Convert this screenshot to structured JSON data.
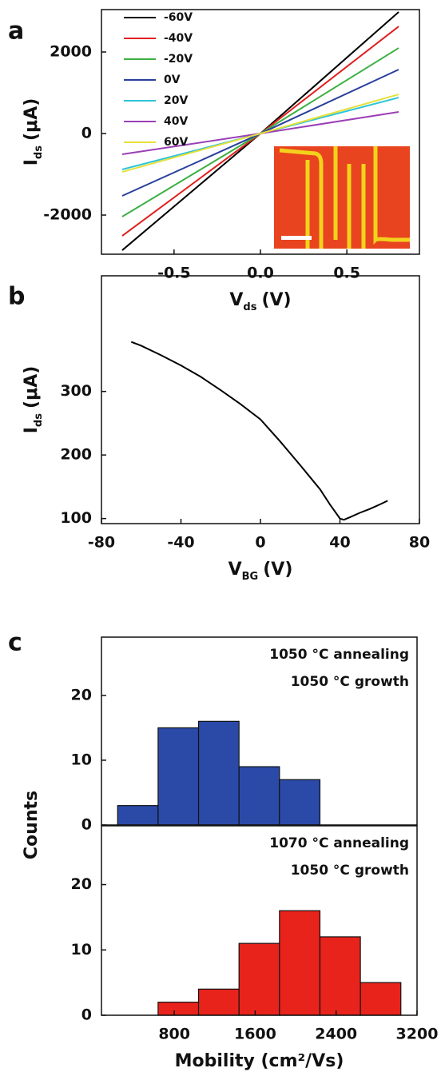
{
  "chart_data": [
    {
      "type": "line",
      "panel": "a",
      "xlabel": {
        "text": "V",
        "sub": "ds",
        "unit": "(V)"
      },
      "ylabel": {
        "text": "I",
        "sub": "ds",
        "unit": "(μA)"
      },
      "x": [
        -0.8,
        0,
        0.8
      ],
      "series": [
        {
          "name": "-60V",
          "color": "#000000",
          "values": [
            -2863,
            0,
            2980
          ]
        },
        {
          "name": "-40V",
          "color": "#e0201e",
          "values": [
            -2510,
            0,
            2627
          ]
        },
        {
          "name": "-20V",
          "color": "#3cb043",
          "values": [
            -2039,
            0,
            2098
          ]
        },
        {
          "name": "0V",
          "color": "#2a3f9d",
          "values": [
            -1529,
            0,
            1569
          ]
        },
        {
          "name": "20V",
          "color": "#2ec4d6",
          "values": [
            -882,
            0,
            882
          ]
        },
        {
          "name": "40V",
          "color": "#9b3fb5",
          "values": [
            -510,
            0,
            530
          ]
        },
        {
          "name": "60V",
          "color": "#e6e03a",
          "values": [
            -941,
            0,
            961
          ]
        }
      ],
      "xlim": [
        -0.92,
        0.92
      ],
      "xticks": [
        -0.5,
        {
          "value": 0,
          "label": "0.0"
        },
        0.5
      ],
      "ylim": [
        -2960,
        3040
      ],
      "yticks": [
        -2000,
        0,
        2000
      ],
      "legend": "upper left"
    },
    {
      "type": "line",
      "panel": "b",
      "xlabel": {
        "text": "V",
        "sub": "BG",
        "unit": "(V)"
      },
      "ylabel": {
        "text": "I",
        "sub": "ds",
        "unit": "(μA)"
      },
      "x": [
        -65,
        -60,
        -50,
        -40,
        -30,
        -20,
        -10,
        0,
        10,
        20,
        30,
        35,
        40,
        42,
        45,
        50,
        55,
        60,
        64
      ],
      "series": [
        {
          "color": "#000000",
          "values": [
            378,
            372,
            357,
            341,
            323,
            302,
            280,
            256,
            221,
            184,
            146,
            122,
            100,
            98,
            102,
            109,
            115,
            122,
            128
          ]
        }
      ],
      "xlim": [
        -80,
        80
      ],
      "xticks": [
        -80,
        -40,
        0,
        40,
        80
      ],
      "ylim": [
        92,
        482
      ],
      "yticks": [
        100,
        200,
        300
      ]
    },
    {
      "type": "histogram",
      "panel": "c",
      "ylabel": "Counts",
      "annotations": [
        "1050 °C annealing",
        "1050 °C growth"
      ],
      "bins": [
        240,
        640,
        1040,
        1440,
        1840,
        2240
      ],
      "values": [
        3,
        15,
        16,
        9,
        7
      ],
      "color": "#2b4aa8",
      "xlim": [
        80,
        3200
      ],
      "ylim": [
        0,
        29
      ],
      "yticks": [
        0,
        10,
        20
      ]
    },
    {
      "type": "histogram",
      "xlabel": "Mobility (cm²/Vs)",
      "annotations": [
        "1070 °C annealing",
        "1050 °C growth"
      ],
      "bins": [
        640,
        1040,
        1440,
        1840,
        2240,
        2640,
        3040
      ],
      "values": [
        2,
        4,
        11,
        16,
        12,
        5
      ],
      "color": "#e8231c",
      "xlim": [
        80,
        3200
      ],
      "xticks": [
        800,
        1600,
        2400,
        3200
      ],
      "ylim": [
        0,
        29
      ],
      "yticks": [
        0,
        10,
        20
      ]
    }
  ]
}
